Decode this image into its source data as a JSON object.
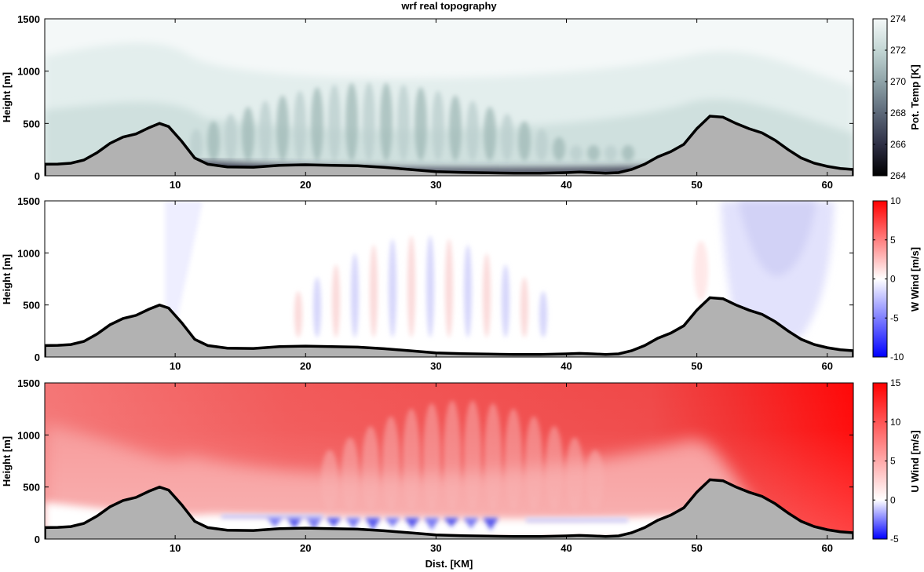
{
  "figure_title": "wrf real topography",
  "chart_data": [
    {
      "type": "heatmap",
      "panel": "potential-temperature",
      "title": "wrf real topography",
      "xlabel": "",
      "ylabel": "Height [m]",
      "colorbar_label": "Pot. Temp [K]",
      "colorbar_range": [
        264,
        274
      ],
      "colorbar_ticks": [
        264,
        266,
        268,
        270,
        272,
        274
      ],
      "colormap": [
        "#000000",
        "#2e2f45",
        "#5c6878",
        "#8fa3a8",
        "#c3d6d4",
        "#f4f8f8"
      ],
      "xlim": [
        0,
        62
      ],
      "ylim": [
        0,
        1500
      ],
      "xticks": [
        10,
        20,
        30,
        40,
        50,
        60
      ],
      "yticks": [
        0,
        500,
        1000,
        1500
      ]
    },
    {
      "type": "heatmap",
      "panel": "vertical-wind",
      "xlabel": "",
      "ylabel": "Height [m]",
      "colorbar_label": "W Wind [m/s]",
      "colorbar_range": [
        -10,
        10
      ],
      "colorbar_ticks": [
        -10,
        -5,
        0,
        5,
        10
      ],
      "colormap": [
        "#0000ff",
        "#ffffff",
        "#ff0000"
      ],
      "xlim": [
        0,
        62
      ],
      "ylim": [
        0,
        1500
      ],
      "xticks": [
        10,
        20,
        30,
        40,
        50,
        60
      ],
      "yticks": [
        0,
        500,
        1000,
        1500
      ]
    },
    {
      "type": "heatmap",
      "panel": "horizontal-wind",
      "xlabel": "Dist. [KM]",
      "ylabel": "Height [m]",
      "colorbar_label": "U Wind [m/s]",
      "colorbar_range": [
        -5,
        15
      ],
      "colorbar_ticks": [
        -5,
        0,
        5,
        10,
        15
      ],
      "colormap": [
        "#0000ff",
        "#ffffff",
        "#ff0000"
      ],
      "xlim": [
        0,
        62
      ],
      "ylim": [
        0,
        1500
      ],
      "xticks": [
        10,
        20,
        30,
        40,
        50,
        60
      ],
      "yticks": [
        0,
        500,
        1000,
        1500
      ]
    }
  ],
  "terrain": {
    "x": [
      0,
      1,
      2,
      3,
      4,
      5,
      6,
      7,
      8,
      8.8,
      9.5,
      10.5,
      11.5,
      12.5,
      14,
      16,
      18,
      20,
      22,
      24,
      26,
      28,
      30,
      32,
      34,
      36,
      38,
      40,
      41,
      42,
      43,
      44,
      45,
      46,
      47,
      48,
      49,
      50,
      51,
      52,
      53,
      54,
      55,
      56,
      57,
      58,
      59,
      60,
      61,
      62
    ],
    "y": [
      110,
      112,
      120,
      150,
      220,
      310,
      370,
      400,
      460,
      500,
      470,
      330,
      170,
      110,
      85,
      82,
      100,
      105,
      100,
      95,
      80,
      60,
      40,
      32,
      28,
      25,
      25,
      30,
      35,
      30,
      25,
      30,
      60,
      110,
      180,
      230,
      300,
      450,
      570,
      560,
      500,
      450,
      410,
      340,
      250,
      170,
      120,
      90,
      70,
      60
    ]
  }
}
